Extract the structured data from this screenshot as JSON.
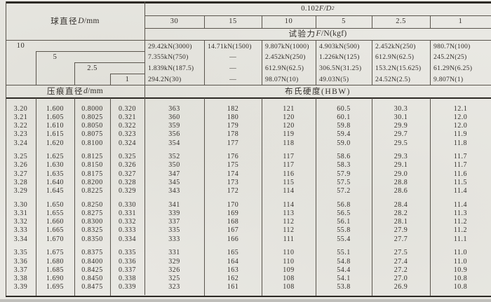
{
  "table": {
    "pressure_formula": {
      "base": "0.102",
      "vars": "F/D",
      "sup": "2"
    },
    "ratio_columns": [
      "30",
      "15",
      "10",
      "5",
      "2.5",
      "1"
    ],
    "ball_header": {
      "pre": "球直径 ",
      "var": "D",
      "post": "/mm"
    },
    "ball_diameters": [
      "10",
      "5",
      "2.5",
      "1"
    ],
    "force_header": {
      "pre": "试验力 ",
      "var": "F",
      "post": "/N(kgf)"
    },
    "force_columns": [
      [
        "29.42kN(3000)",
        "7.355kN(750)",
        "1.839kN(187.5)",
        "294.2N(30)"
      ],
      [
        "14.71kN(1500)",
        "—",
        "—",
        "—"
      ],
      [
        "9.807kN(1000)",
        "2.452kN(250)",
        "612.9N(62.5)",
        "98.07N(10)"
      ],
      [
        "4.903kN(500)",
        "1.226kN(125)",
        "306.5N(31.25)",
        "49.03N(5)"
      ],
      [
        "2.452kN(250)",
        "612.9N(62.5)",
        "153.2N(15.625)",
        "24.52N(2.5)"
      ],
      [
        "980.7N(100)",
        "245.2N(25)",
        "61.29N(6.25)",
        "9.807N(1)"
      ]
    ],
    "indent_header": {
      "pre": "压痕直径 ",
      "var": "d",
      "post": "/mm"
    },
    "hardness_header": "布氏硬度(HBW)",
    "rows": [
      [
        "3.20",
        "1.600",
        "0.8000",
        "0.320",
        "363",
        "182",
        "121",
        "60.5",
        "30.3",
        "12.1"
      ],
      [
        "3.21",
        "1.605",
        "0.8025",
        "0.321",
        "360",
        "180",
        "120",
        "60.1",
        "30.1",
        "12.0"
      ],
      [
        "3.22",
        "1.610",
        "0.8050",
        "0.322",
        "359",
        "179",
        "120",
        "59.8",
        "29.9",
        "12.0"
      ],
      [
        "3.23",
        "1.615",
        "0.8075",
        "0.323",
        "356",
        "178",
        "119",
        "59.4",
        "29.7",
        "11.9"
      ],
      [
        "3.24",
        "1.620",
        "0.8100",
        "0.324",
        "354",
        "177",
        "118",
        "59.0",
        "29.5",
        "11.8"
      ],
      [
        "3.25",
        "1.625",
        "0.8125",
        "0.325",
        "352",
        "176",
        "117",
        "58.6",
        "29.3",
        "11.7"
      ],
      [
        "3.26",
        "1.630",
        "0.8150",
        "0.326",
        "350",
        "175",
        "117",
        "58.3",
        "29.1",
        "11.7"
      ],
      [
        "3.27",
        "1.635",
        "0.8175",
        "0.327",
        "347",
        "174",
        "116",
        "57.9",
        "29.0",
        "11.6"
      ],
      [
        "3.28",
        "1.640",
        "0.8200",
        "0.328",
        "345",
        "173",
        "115",
        "57.5",
        "28.8",
        "11.5"
      ],
      [
        "3.29",
        "1.645",
        "0.8225",
        "0.329",
        "343",
        "172",
        "114",
        "57.2",
        "28.6",
        "11.4"
      ],
      [
        "3.30",
        "1.650",
        "0.8250",
        "0.330",
        "341",
        "170",
        "114",
        "56.8",
        "28.4",
        "11.4"
      ],
      [
        "3.31",
        "1.655",
        "0.8275",
        "0.331",
        "339",
        "169",
        "113",
        "56.5",
        "28.2",
        "11.3"
      ],
      [
        "3.32",
        "1.660",
        "0.8300",
        "0.332",
        "337",
        "168",
        "112",
        "56.1",
        "28.1",
        "11.2"
      ],
      [
        "3.33",
        "1.665",
        "0.8325",
        "0.333",
        "335",
        "167",
        "112",
        "55.8",
        "27.9",
        "11.2"
      ],
      [
        "3.34",
        "1.670",
        "0.8350",
        "0.334",
        "333",
        "166",
        "111",
        "55.4",
        "27.7",
        "11.1"
      ],
      [
        "3.35",
        "1.675",
        "0.8375",
        "0.335",
        "331",
        "165",
        "110",
        "55.1",
        "27.5",
        "11.0"
      ],
      [
        "3.36",
        "1.680",
        "0.8400",
        "0.336",
        "329",
        "164",
        "110",
        "54.8",
        "27.4",
        "11.0"
      ],
      [
        "3.37",
        "1.685",
        "0.8425",
        "0.337",
        "326",
        "163",
        "109",
        "54.4",
        "27.2",
        "10.9"
      ],
      [
        "3.38",
        "1.690",
        "0.8450",
        "0.338",
        "325",
        "162",
        "108",
        "54.1",
        "27.0",
        "10.8"
      ],
      [
        "3.39",
        "1.695",
        "0.8475",
        "0.339",
        "323",
        "161",
        "108",
        "53.8",
        "26.9",
        "10.8"
      ]
    ]
  }
}
